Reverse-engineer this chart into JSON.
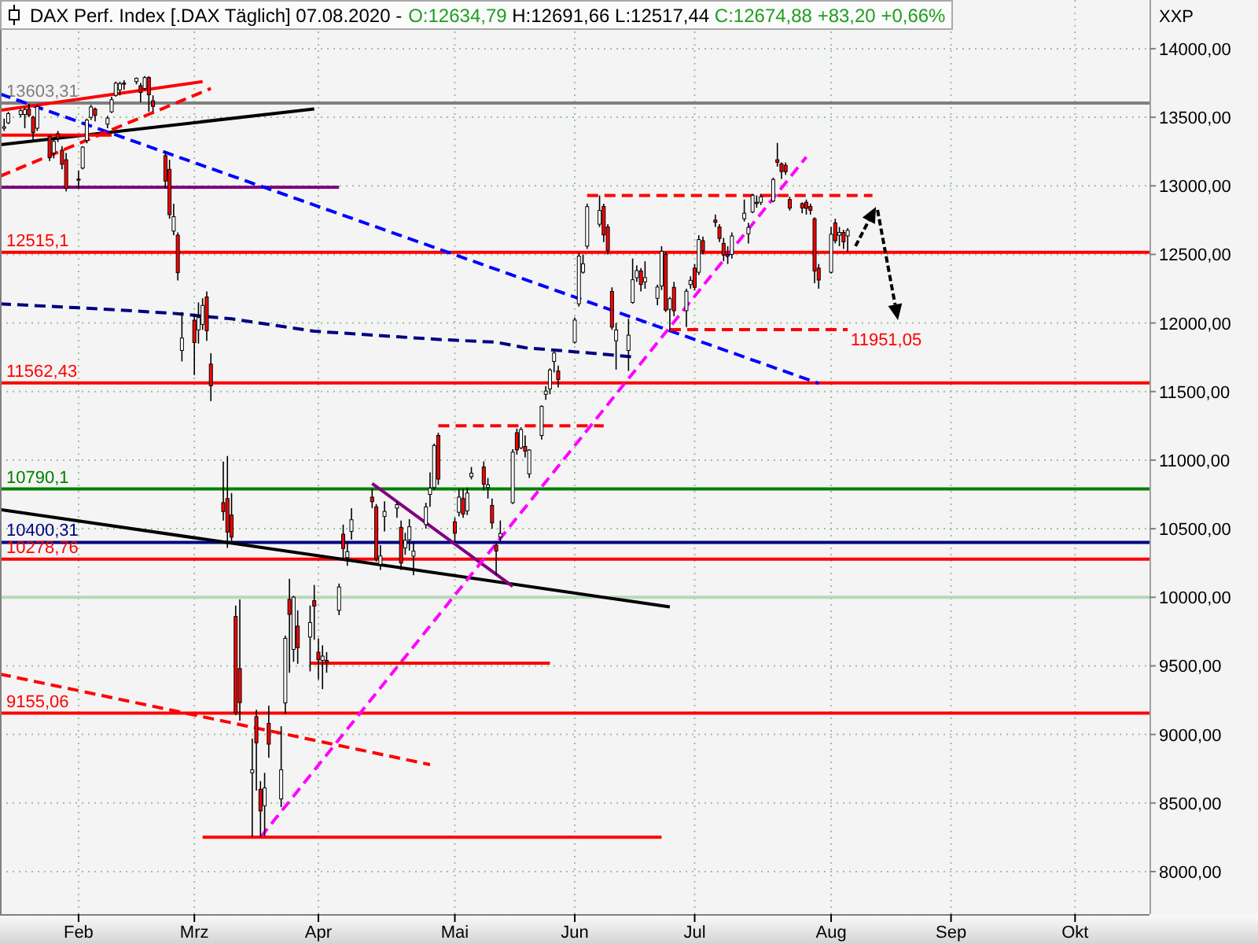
{
  "chart_data": {
    "type": "candlestick",
    "title": "DAX Perf. Index [.DAX Täglich] 07.08.2020 -",
    "subtitle": "O:12634,79 H:12691,66 L:12517,44 C:12674,88 +83,20 +0,66%",
    "ylabel": "XXP",
    "x": [
      "2020-01-16",
      "2020-01-17",
      "2020-01-20",
      "2020-01-21",
      "2020-01-22",
      "2020-01-23",
      "2020-01-24",
      "2020-01-27",
      "2020-01-28",
      "2020-01-29",
      "2020-01-30",
      "2020-01-31",
      "2020-02-03",
      "2020-02-04",
      "2020-02-05",
      "2020-02-06",
      "2020-02-07",
      "2020-02-10",
      "2020-02-11",
      "2020-02-12",
      "2020-02-13",
      "2020-02-14",
      "2020-02-17",
      "2020-02-18",
      "2020-02-19",
      "2020-02-20",
      "2020-02-21",
      "2020-02-24",
      "2020-02-25",
      "2020-02-26",
      "2020-02-27",
      "2020-02-28",
      "2020-03-02",
      "2020-03-03",
      "2020-03-04",
      "2020-03-05",
      "2020-03-06",
      "2020-03-09",
      "2020-03-10",
      "2020-03-11",
      "2020-03-12",
      "2020-03-13",
      "2020-03-16",
      "2020-03-17",
      "2020-03-18",
      "2020-03-19",
      "2020-03-20",
      "2020-03-23",
      "2020-03-24",
      "2020-03-25",
      "2020-03-26",
      "2020-03-27",
      "2020-03-30",
      "2020-03-31",
      "2020-04-01",
      "2020-04-02",
      "2020-04-03",
      "2020-04-06",
      "2020-04-07",
      "2020-04-08",
      "2020-04-09",
      "2020-04-14",
      "2020-04-15",
      "2020-04-16",
      "2020-04-17",
      "2020-04-20",
      "2020-04-21",
      "2020-04-22",
      "2020-04-23",
      "2020-04-24",
      "2020-04-27",
      "2020-04-28",
      "2020-04-29",
      "2020-04-30",
      "2020-05-04",
      "2020-05-05",
      "2020-05-06",
      "2020-05-07",
      "2020-05-08",
      "2020-05-11",
      "2020-05-12",
      "2020-05-13",
      "2020-05-14",
      "2020-05-15",
      "2020-05-18",
      "2020-05-19",
      "2020-05-20",
      "2020-05-21",
      "2020-05-22",
      "2020-05-25",
      "2020-05-26",
      "2020-05-27",
      "2020-05-28",
      "2020-05-29",
      "2020-06-02",
      "2020-06-03",
      "2020-06-04",
      "2020-06-05",
      "2020-06-08",
      "2020-06-09",
      "2020-06-10",
      "2020-06-11",
      "2020-06-12",
      "2020-06-15",
      "2020-06-16",
      "2020-06-17",
      "2020-06-18",
      "2020-06-19",
      "2020-06-22",
      "2020-06-23",
      "2020-06-24",
      "2020-06-25",
      "2020-06-26",
      "2020-06-29",
      "2020-06-30",
      "2020-07-01",
      "2020-07-02",
      "2020-07-03",
      "2020-07-06",
      "2020-07-07",
      "2020-07-08",
      "2020-07-09",
      "2020-07-10",
      "2020-07-13",
      "2020-07-14",
      "2020-07-15",
      "2020-07-16",
      "2020-07-17",
      "2020-07-20",
      "2020-07-21",
      "2020-07-22",
      "2020-07-23",
      "2020-07-24",
      "2020-07-27",
      "2020-07-28",
      "2020-07-29",
      "2020-07-30",
      "2020-07-31",
      "2020-08-03",
      "2020-08-04",
      "2020-08-05",
      "2020-08-06",
      "2020-08-07"
    ],
    "ohlc": [
      [
        13420,
        13490,
        13400,
        13430
      ],
      [
        13460,
        13540,
        13450,
        13526
      ],
      [
        13520,
        13560,
        13500,
        13548
      ],
      [
        13520,
        13570,
        13420,
        13556
      ],
      [
        13560,
        13600,
        13500,
        13516
      ],
      [
        13500,
        13510,
        13320,
        13388
      ],
      [
        13420,
        13590,
        13400,
        13577
      ],
      [
        13360,
        13370,
        13180,
        13205
      ],
      [
        13240,
        13340,
        13200,
        13324
      ],
      [
        13380,
        13400,
        13320,
        13345
      ],
      [
        13260,
        13290,
        13120,
        13157
      ],
      [
        13190,
        13240,
        12960,
        12982
      ],
      [
        13050,
        13110,
        12980,
        13045
      ],
      [
        13130,
        13290,
        13120,
        13282
      ],
      [
        13330,
        13490,
        13310,
        13479
      ],
      [
        13500,
        13590,
        13480,
        13575
      ],
      [
        13560,
        13570,
        13470,
        13514
      ],
      [
        13450,
        13510,
        13420,
        13494
      ],
      [
        13540,
        13650,
        13530,
        13628
      ],
      [
        13660,
        13760,
        13650,
        13749
      ],
      [
        13700,
        13760,
        13660,
        13745
      ],
      [
        13750,
        13770,
        13700,
        13744
      ],
      [
        13760,
        13790,
        13740,
        13784
      ],
      [
        13730,
        13750,
        13610,
        13681
      ],
      [
        13710,
        13800,
        13700,
        13789
      ],
      [
        13790,
        13800,
        13540,
        13664
      ],
      [
        13620,
        13660,
        13540,
        13579
      ],
      [
        13220,
        13250,
        12980,
        13035
      ],
      [
        13120,
        13190,
        12760,
        12790
      ],
      [
        12670,
        12870,
        12640,
        12775
      ],
      [
        12640,
        12660,
        12310,
        12367
      ],
      [
        11800,
        12080,
        11720,
        11890
      ],
      [
        12020,
        12070,
        11620,
        11857
      ],
      [
        11950,
        12150,
        11850,
        12039
      ],
      [
        11990,
        12180,
        11950,
        12128
      ],
      [
        12190,
        12230,
        11870,
        11944
      ],
      [
        11700,
        11780,
        11430,
        11542
      ],
      [
        10690,
        10990,
        10560,
        10625
      ],
      [
        10720,
        11030,
        10360,
        10475
      ],
      [
        10600,
        10760,
        10410,
        10439
      ],
      [
        9860,
        9940,
        9140,
        9161
      ],
      [
        9480,
        9985,
        9100,
        9232
      ],
      [
        8720,
        8970,
        8255,
        8742
      ],
      [
        9130,
        9180,
        8590,
        8939
      ],
      [
        8600,
        8660,
        8255,
        8442
      ],
      [
        8480,
        8720,
        8260,
        8610
      ],
      [
        9080,
        9210,
        8830,
        8929
      ],
      [
        8530,
        9060,
        8470,
        8742
      ],
      [
        9230,
        9720,
        9150,
        9701
      ],
      [
        9985,
        10135,
        9450,
        9875
      ],
      [
        9620,
        10010,
        9530,
        10001
      ],
      [
        9790,
        9905,
        9515,
        9633
      ],
      [
        9710,
        9940,
        9460,
        9816
      ],
      [
        9975,
        10090,
        9690,
        9936
      ],
      [
        9600,
        9700,
        9400,
        9544
      ],
      [
        9540,
        9650,
        9330,
        9571
      ],
      [
        9540,
        9600,
        9450,
        9525
      ],
      [
        9905,
        10100,
        9870,
        10075
      ],
      [
        10460,
        10530,
        10270,
        10356
      ],
      [
        10290,
        10400,
        10230,
        10333
      ],
      [
        10480,
        10650,
        10420,
        10565
      ],
      [
        10730,
        10790,
        10650,
        10697
      ],
      [
        10660,
        10680,
        10260,
        10280
      ],
      [
        10240,
        10380,
        10200,
        10301
      ],
      [
        10590,
        10700,
        10480,
        10626
      ],
      [
        10650,
        10700,
        10580,
        10676
      ],
      [
        10510,
        10560,
        10200,
        10250
      ],
      [
        10360,
        10470,
        10310,
        10416
      ],
      [
        10420,
        10570,
        10340,
        10514
      ],
      [
        10300,
        10400,
        10160,
        10336
      ],
      [
        10530,
        10690,
        10500,
        10659
      ],
      [
        10750,
        10910,
        10660,
        10796
      ],
      [
        10800,
        11120,
        10780,
        11107
      ],
      [
        11180,
        11200,
        10820,
        10862
      ],
      [
        10550,
        10580,
        10400,
        10467
      ],
      [
        10620,
        10790,
        10590,
        10730
      ],
      [
        10720,
        10790,
        10580,
        10607
      ],
      [
        10630,
        10800,
        10600,
        10760
      ],
      [
        10880,
        10950,
        10860,
        10905
      ],
      [
        10950,
        10990,
        10780,
        10825
      ],
      [
        10800,
        10870,
        10720,
        10820
      ],
      [
        10670,
        10720,
        10500,
        10542
      ],
      [
        10380,
        10400,
        10160,
        10337
      ],
      [
        10440,
        10560,
        10410,
        10465
      ],
      [
        10690,
        11080,
        10680,
        11058
      ],
      [
        11200,
        11230,
        11040,
        11075
      ],
      [
        11090,
        11240,
        11080,
        11223
      ],
      [
        11100,
        11180,
        11020,
        11066
      ],
      [
        10900,
        11080,
        10870,
        11074
      ],
      [
        11180,
        11400,
        11150,
        11392
      ],
      [
        11480,
        11540,
        11440,
        11504
      ],
      [
        11520,
        11670,
        11480,
        11657
      ],
      [
        11720,
        11790,
        11640,
        11781
      ],
      [
        11650,
        11690,
        11530,
        11587
      ],
      [
        11860,
        12040,
        11850,
        12021
      ],
      [
        12140,
        12510,
        12120,
        12487
      ],
      [
        12370,
        12500,
        12360,
        12431
      ],
      [
        12560,
        12870,
        12540,
        12848
      ],
      [
        12720,
        12930,
        12700,
        12820
      ],
      [
        12850,
        12870,
        12590,
        12642
      ],
      [
        12700,
        12720,
        12500,
        12530
      ],
      [
        12230,
        12260,
        11950,
        11970
      ],
      [
        11870,
        12000,
        11660,
        11949
      ],
      [
        11800,
        12030,
        11650,
        11911
      ],
      [
        12150,
        12470,
        12140,
        12315
      ],
      [
        12330,
        12420,
        12300,
        12382
      ],
      [
        12380,
        12400,
        12230,
        12281
      ],
      [
        12300,
        12450,
        12250,
        12331
      ],
      [
        12180,
        12280,
        12130,
        12262
      ],
      [
        12270,
        12560,
        12240,
        12523
      ],
      [
        12500,
        12520,
        12080,
        12094
      ],
      [
        12100,
        12190,
        11951,
        12177
      ],
      [
        12260,
        12300,
        12050,
        12089
      ],
      [
        12090,
        12250,
        11970,
        12232
      ],
      [
        12280,
        12340,
        12250,
        12311
      ],
      [
        12400,
        12430,
        12240,
        12260
      ],
      [
        12370,
        12640,
        12350,
        12608
      ],
      [
        12600,
        12630,
        12500,
        12528
      ],
      [
        12750,
        12790,
        12700,
        12734
      ],
      [
        12700,
        12720,
        12590,
        12616
      ],
      [
        12580,
        12620,
        12450,
        12495
      ],
      [
        12500,
        12560,
        12430,
        12489
      ],
      [
        12500,
        12660,
        12470,
        12634
      ],
      [
        12760,
        12900,
        12740,
        12800
      ],
      [
        12650,
        12730,
        12580,
        12697
      ],
      [
        12810,
        12940,
        12800,
        12931
      ],
      [
        12880,
        12930,
        12840,
        12874
      ],
      [
        12880,
        12940,
        12860,
        12920
      ],
      [
        12890,
        13060,
        12880,
        13046
      ],
      [
        13190,
        13313,
        13140,
        13171
      ],
      [
        13160,
        13170,
        13050,
        13104
      ],
      [
        13150,
        13170,
        13080,
        13103
      ],
      [
        12900,
        12920,
        12820,
        12838
      ],
      [
        12870,
        12880,
        12800,
        12839
      ],
      [
        12880,
        12900,
        12790,
        12836
      ],
      [
        12850,
        12870,
        12790,
        12822
      ],
      [
        12760,
        12770,
        12290,
        12379
      ],
      [
        12400,
        12430,
        12250,
        12313
      ],
      [
        12370,
        12700,
        12360,
        12647
      ],
      [
        12730,
        12760,
        12580,
        12600
      ],
      [
        12640,
        12700,
        12560,
        12660
      ],
      [
        12660,
        12680,
        12540,
        12592
      ],
      [
        12634.79,
        12691.66,
        12517.44,
        12674.88
      ]
    ],
    "series": [
      {
        "type": "line",
        "x": [
          "2020-01-15",
          "2020-03-31"
        ],
        "values": [
          13300,
          13560
        ],
        "color": "#000000"
      },
      {
        "type": "line",
        "x": [
          "2020-01-15",
          "2020-06-25"
        ],
        "values": [
          10640,
          9930
        ],
        "color": "#000000"
      },
      {
        "type": "line",
        "x": [
          "2020-01-15",
          "2020-04-06"
        ],
        "values": [
          12990,
          12990
        ],
        "color": "#800080"
      },
      {
        "type": "line",
        "x": [
          "2020-04-14",
          "2020-05-18"
        ],
        "values": [
          10830,
          10080
        ],
        "color": "#800080"
      },
      {
        "type": "line",
        "x": [
          "2020-03-18",
          "2020-07-28"
        ],
        "values": [
          8250,
          13210
        ],
        "color": "#ff00ff",
        "line_style": "dashed"
      },
      {
        "type": "line",
        "x": [
          "2020-01-15",
          "2020-02-10",
          "2020-02-26",
          "2020-03-11",
          "2020-03-31",
          "2020-04-15",
          "2020-04-30",
          "2020-05-14",
          "2020-05-21",
          "2020-06-02",
          "2020-06-10",
          "2020-06-17"
        ],
        "values": [
          12140,
          12100,
          12070,
          12030,
          11940,
          11910,
          11880,
          11860,
          11820,
          11790,
          11770,
          11750
        ],
        "color": "#000080",
        "line_style": "dashed"
      },
      {
        "type": "line",
        "x": [
          "2020-01-15",
          "2020-07-31"
        ],
        "values": [
          13670,
          11560
        ],
        "color": "#0000ff",
        "line_style": "dashed"
      },
      {
        "type": "line",
        "x": [
          "2020-01-15",
          "2020-03-04"
        ],
        "values": [
          13550,
          13760
        ],
        "color": "#ff0000"
      },
      {
        "type": "line",
        "x": [
          "2020-01-15",
          "2020-02-11"
        ],
        "values": [
          13370,
          13370
        ],
        "color": "#ff0000"
      },
      {
        "type": "line",
        "x": [
          "2020-01-15",
          "2020-03-06"
        ],
        "values": [
          13070,
          13710
        ],
        "color": "#ff0000",
        "line_style": "dashed"
      },
      {
        "type": "line",
        "x": [
          "2020-06-05",
          "2020-08-13"
        ],
        "values": [
          12930,
          12930
        ],
        "color": "#ff0000",
        "line_style": "dashed"
      },
      {
        "type": "line",
        "x": [
          "2020-06-25",
          "2020-08-07"
        ],
        "values": [
          11951.05,
          11951.05
        ],
        "color": "#ff0000",
        "line_style": "dashed"
      },
      {
        "type": "line",
        "x": [
          "2020-03-30",
          "2020-05-27"
        ],
        "values": [
          9520,
          9520
        ],
        "color": "#ff0000"
      },
      {
        "type": "line",
        "x": [
          "2020-04-30",
          "2020-06-09"
        ],
        "values": [
          11250,
          11250
        ],
        "color": "#ff0000",
        "line_style": "dashed"
      },
      {
        "type": "line",
        "x": [
          "2020-03-04",
          "2020-06-23"
        ],
        "values": [
          8250,
          8250
        ],
        "color": "#ff0000"
      },
      {
        "type": "line",
        "x": [
          "2020-01-15",
          "2020-04-28"
        ],
        "values": [
          9440,
          8780
        ],
        "color": "#ff0000",
        "line_style": "dashed"
      }
    ],
    "ref_lines": [
      {
        "axis": "y",
        "value": 13603.31,
        "label": "13603,31",
        "color": "#808080"
      },
      {
        "axis": "y",
        "value": 12515.1,
        "label": "12515,1",
        "color": "#ff0000"
      },
      {
        "axis": "y",
        "value": 11562.43,
        "label": "11562,43",
        "color": "#ff0000"
      },
      {
        "axis": "y",
        "value": 10790.1,
        "label": "10790,1",
        "color": "#008000"
      },
      {
        "axis": "y",
        "value": 10400.31,
        "label": "10400,31",
        "color": "#000080"
      },
      {
        "axis": "y",
        "value": 10278.76,
        "label": "10278,76",
        "color": "#ff0000"
      },
      {
        "axis": "y",
        "value": 9155.06,
        "label": "9155,06",
        "color": "#ff0000"
      },
      {
        "axis": "y",
        "value": 10000,
        "color": "#b8d8b8"
      }
    ],
    "annotations": [
      {
        "text": "11951,05",
        "x": "2020-08-07",
        "y": 11951.05
      }
    ],
    "xlim": [
      "2020-01-15",
      "2020-10-19"
    ],
    "ylim": [
      7690,
      14355
    ],
    "xticks": [
      {
        "value": "2020-02-03",
        "label": "Feb"
      },
      {
        "value": "2020-03-02",
        "label": "Mrz"
      },
      {
        "value": "2020-04-01",
        "label": "Apr"
      },
      {
        "value": "2020-05-04",
        "label": "Mai"
      },
      {
        "value": "2020-06-02",
        "label": "Jun"
      },
      {
        "value": "2020-07-01",
        "label": "Jul"
      },
      {
        "value": "2020-08-03",
        "label": "Aug"
      },
      {
        "value": "2020-09-01",
        "label": "Sep"
      },
      {
        "value": "2020-10-01",
        "label": "Okt"
      }
    ],
    "yticks": [
      {
        "value": 8000,
        "label": "8000,00"
      },
      {
        "value": 8500,
        "label": "8500,00"
      },
      {
        "value": 9000,
        "label": "9000,00"
      },
      {
        "value": 9500,
        "label": "9500,00"
      },
      {
        "value": 10000,
        "label": "10000,00"
      },
      {
        "value": 10500,
        "label": "10500,00"
      },
      {
        "value": 11000,
        "label": "11000,00"
      },
      {
        "value": 11500,
        "label": "11500,00"
      },
      {
        "value": 12000,
        "label": "12000,00"
      },
      {
        "value": 12500,
        "label": "12500,00"
      },
      {
        "value": 13000,
        "label": "13000,00"
      },
      {
        "value": 13500,
        "label": "13500,00"
      },
      {
        "value": 14000,
        "label": "14000,00"
      }
    ],
    "grid": true
  }
}
